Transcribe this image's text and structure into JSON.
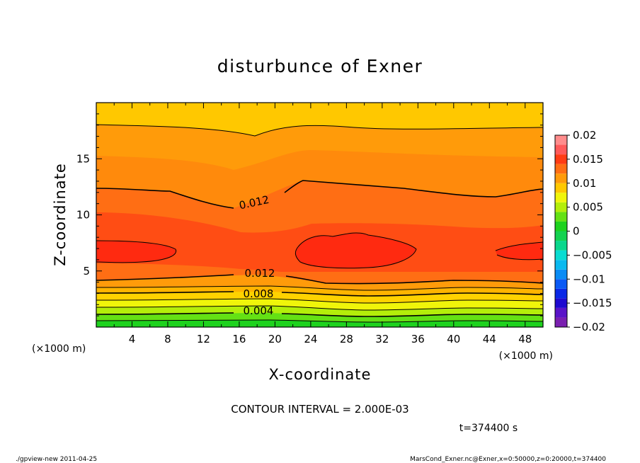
{
  "chart_data": {
    "type": "heatmap",
    "title": "disturbunce of Exner",
    "xlabel": "X-coordinate",
    "ylabel": "Z-coordinate",
    "x_unit_label": "(×1000 m)",
    "x_unit_label_right": "(×1000 m)",
    "xlim": [
      0,
      50
    ],
    "ylim": [
      0,
      20
    ],
    "x_ticks": [
      4,
      8,
      12,
      16,
      20,
      24,
      28,
      32,
      36,
      40,
      44,
      48
    ],
    "y_ticks": [
      5,
      10,
      15
    ],
    "grid": false,
    "contour_interval_text": "CONTOUR INTERVAL = 2.000E-03",
    "time_text": "t=374400 s",
    "contour_labels": [
      "0.012",
      "0.012",
      "0.008",
      "0.004"
    ],
    "colorbar": {
      "ticks": [
        "0.02",
        "0.015",
        "0.01",
        "0.005",
        "0",
        "−0.005",
        "−0.01",
        "−0.015",
        "−0.02"
      ],
      "levels": [
        {
          "from": -0.02,
          "to": -0.018,
          "color": "#7a1fb0"
        },
        {
          "from": -0.018,
          "to": -0.016,
          "color": "#5a14c8"
        },
        {
          "from": -0.016,
          "to": -0.014,
          "color": "#1e0ad0"
        },
        {
          "from": -0.014,
          "to": -0.012,
          "color": "#0a28e6"
        },
        {
          "from": -0.012,
          "to": -0.01,
          "color": "#0a5af5"
        },
        {
          "from": -0.01,
          "to": -0.008,
          "color": "#0a8cf5"
        },
        {
          "from": -0.008,
          "to": -0.006,
          "color": "#0ab9f0"
        },
        {
          "from": -0.006,
          "to": -0.004,
          "color": "#0adcd2"
        },
        {
          "from": -0.004,
          "to": -0.002,
          "color": "#0ad78c"
        },
        {
          "from": -0.002,
          "to": 0.0,
          "color": "#14d250"
        },
        {
          "from": 0.0,
          "to": 0.002,
          "color": "#1ed21e"
        },
        {
          "from": 0.002,
          "to": 0.004,
          "color": "#64e114"
        },
        {
          "from": 0.004,
          "to": 0.006,
          "color": "#b4ee0a"
        },
        {
          "from": 0.006,
          "to": 0.008,
          "color": "#f0f50a"
        },
        {
          "from": 0.008,
          "to": 0.01,
          "color": "#ffc800"
        },
        {
          "from": 0.01,
          "to": 0.012,
          "color": "#ff9b0a"
        },
        {
          "from": 0.012,
          "to": 0.014,
          "color": "#ff6e14"
        },
        {
          "from": 0.014,
          "to": 0.016,
          "color": "#ff3c14"
        },
        {
          "from": 0.016,
          "to": 0.018,
          "color": "#ff5a5a"
        },
        {
          "from": 0.018,
          "to": 0.02,
          "color": "#ff8c8c"
        }
      ]
    }
  },
  "footer": {
    "left": "./gpview-new   2011-04-25",
    "right": "MarsCond_Exner.nc@Exner,x=0:50000,z=0:20000,t=374400"
  }
}
